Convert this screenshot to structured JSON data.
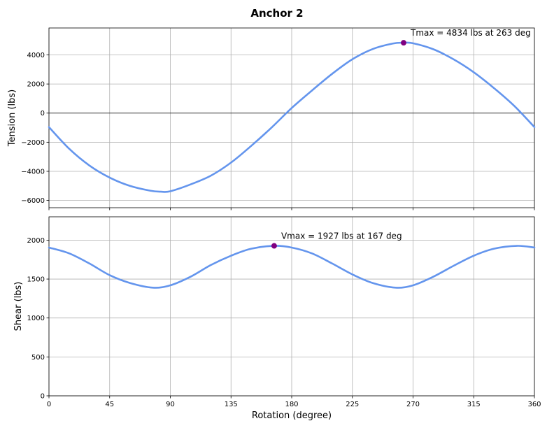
{
  "title": "Anchor 2",
  "colors": {
    "line": "#6495ED",
    "marker": "#800080"
  },
  "chart_data": [
    {
      "type": "line",
      "name": "tension",
      "ylabel": "Tension (lbs)",
      "xlim": [
        0,
        360
      ],
      "ylim": [
        -6500,
        5850
      ],
      "yticks": [
        -6000,
        -4000,
        -2000,
        0,
        2000,
        4000
      ],
      "ytick_labels": [
        "−6000",
        "−4000",
        "−2000",
        "0",
        "2000",
        "4000"
      ],
      "xticks": [
        0,
        45,
        90,
        135,
        180,
        225,
        270,
        315,
        360
      ],
      "grid": true,
      "zero_line": true,
      "x": [
        0,
        15,
        30,
        45,
        60,
        75,
        83,
        90,
        105,
        120,
        135,
        150,
        165,
        180,
        195,
        210,
        225,
        240,
        255,
        263,
        270,
        285,
        300,
        315,
        330,
        345,
        360
      ],
      "y": [
        -960,
        -2450,
        -3600,
        -4430,
        -5000,
        -5330,
        -5400,
        -5370,
        -4900,
        -4300,
        -3400,
        -2250,
        -1000,
        350,
        1550,
        2700,
        3700,
        4400,
        4780,
        4834,
        4800,
        4390,
        3700,
        2810,
        1720,
        500,
        -960
      ],
      "max_point": {
        "x": 263,
        "y": 4834
      },
      "annotation": "Tmax = 4834 lbs at 263 deg"
    },
    {
      "type": "line",
      "name": "shear",
      "ylabel": "Shear (lbs)",
      "xlabel": "Rotation (degree)",
      "xlim": [
        0,
        360
      ],
      "ylim": [
        0,
        2300
      ],
      "yticks": [
        0,
        500,
        1000,
        1500,
        2000
      ],
      "ytick_labels": [
        "0",
        "500",
        "1000",
        "1500",
        "2000"
      ],
      "xticks": [
        0,
        45,
        90,
        135,
        180,
        225,
        270,
        315,
        360
      ],
      "xtick_labels": [
        "0",
        "45",
        "90",
        "135",
        "180",
        "225",
        "270",
        "315",
        "360"
      ],
      "grid": true,
      "x": [
        0,
        15,
        30,
        45,
        60,
        77,
        90,
        105,
        120,
        135,
        150,
        167,
        180,
        195,
        210,
        225,
        240,
        257,
        270,
        285,
        300,
        315,
        330,
        347,
        360
      ],
      "y": [
        1905,
        1830,
        1700,
        1550,
        1450,
        1390,
        1420,
        1530,
        1680,
        1800,
        1890,
        1927,
        1905,
        1830,
        1700,
        1560,
        1450,
        1390,
        1420,
        1530,
        1670,
        1800,
        1890,
        1927,
        1905
      ],
      "max_point": {
        "x": 167,
        "y": 1927
      },
      "annotation": "Vmax = 1927 lbs at 167 deg"
    }
  ]
}
